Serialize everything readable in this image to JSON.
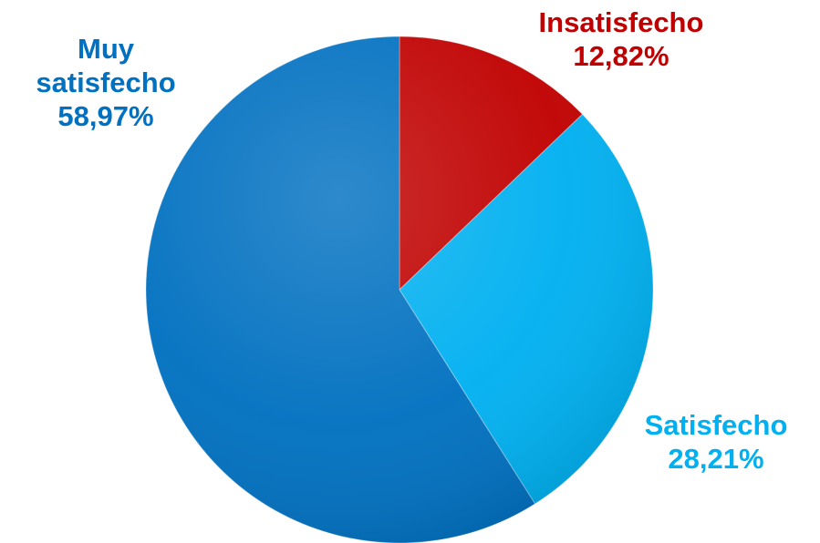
{
  "chart_data": {
    "type": "pie",
    "start_angle_deg": 0,
    "direction": "clockwise",
    "slices": [
      {
        "label": "Insatisfecho",
        "value": 12.82,
        "value_text": "12,82%",
        "color": "#c00000"
      },
      {
        "label": "Satisfecho",
        "value": 28.21,
        "value_text": "28,21%",
        "color": "#00b0f0"
      },
      {
        "label": "Muy satisfecho",
        "label_lines": [
          "Muy",
          "satisfecho"
        ],
        "value": 58.97,
        "value_text": "58,97%",
        "color": "#0070c0"
      }
    ],
    "legend": "none"
  }
}
